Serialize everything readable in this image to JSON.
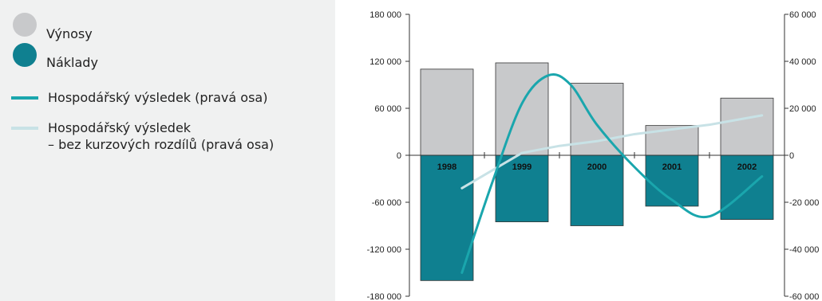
{
  "legend": {
    "items": [
      {
        "label": "Výnosy",
        "color": "#c8c9cb",
        "shape": "circle"
      },
      {
        "label": "Náklady",
        "color": "#0f8090",
        "shape": "circle"
      },
      {
        "label": "Hospodářský výsledek (pravá osa)",
        "color": "#1aa6ad",
        "shape": "line"
      },
      {
        "label": "Hospodářský výsledek",
        "label_line2": "– bez kurzových rozdílů (pravá osa)",
        "color": "#c8e2e6",
        "shape": "line"
      }
    ]
  },
  "chart_data": {
    "type": "bar",
    "categories": [
      "1998",
      "1999",
      "2000",
      "2001",
      "2002"
    ],
    "series": [
      {
        "name": "Výnosy",
        "values": [
          110000,
          118000,
          92000,
          38000,
          73000
        ],
        "color": "#c8c9cb",
        "axis": "left"
      },
      {
        "name": "Náklady",
        "values": [
          -160000,
          -85000,
          -90000,
          -65000,
          -82000
        ],
        "color": "#0f8090",
        "axis": "left"
      },
      {
        "name": "Hospodářský výsledek (pravá osa)",
        "type": "line",
        "smooth": true,
        "axis": "right",
        "color": "#1aa6ad",
        "x": [
          0.2,
          0.6,
          1.0,
          1.35,
          1.65,
          2.0,
          2.5,
          3.0,
          3.5,
          4.2
        ],
        "values": [
          -50000,
          -12000,
          22000,
          34000,
          30000,
          13000,
          -5000,
          -19000,
          -26000,
          -9000
        ]
      },
      {
        "name": "Hospodářský výsledek – bez kurzových rozdílů (pravá osa)",
        "type": "line",
        "axis": "right",
        "color": "#c8e2e6",
        "x": [
          0.2,
          1.0,
          1.5,
          2.0,
          2.5,
          3.0,
          3.5,
          4.2
        ],
        "values": [
          -14000,
          1000,
          4000,
          6000,
          9000,
          11000,
          13000,
          17000
        ]
      }
    ],
    "left_axis": {
      "ylim": [
        -180000,
        180000
      ],
      "ticks": [
        180000,
        120000,
        60000,
        0,
        -60000,
        -120000,
        -180000
      ],
      "tick_labels": [
        "180 000",
        "120 000",
        "60 000",
        "0",
        "-60 000",
        "-120 000",
        "-180 000"
      ]
    },
    "right_axis": {
      "ylim": [
        -60000,
        60000
      ],
      "ticks": [
        60000,
        40000,
        20000,
        0,
        -20000,
        -40000,
        -60000
      ],
      "tick_labels": [
        "60 000",
        "40 000",
        "20 000",
        "0",
        "-20 000",
        "-40 000",
        "-60 000"
      ]
    },
    "grid": false,
    "legend_position": "left"
  }
}
